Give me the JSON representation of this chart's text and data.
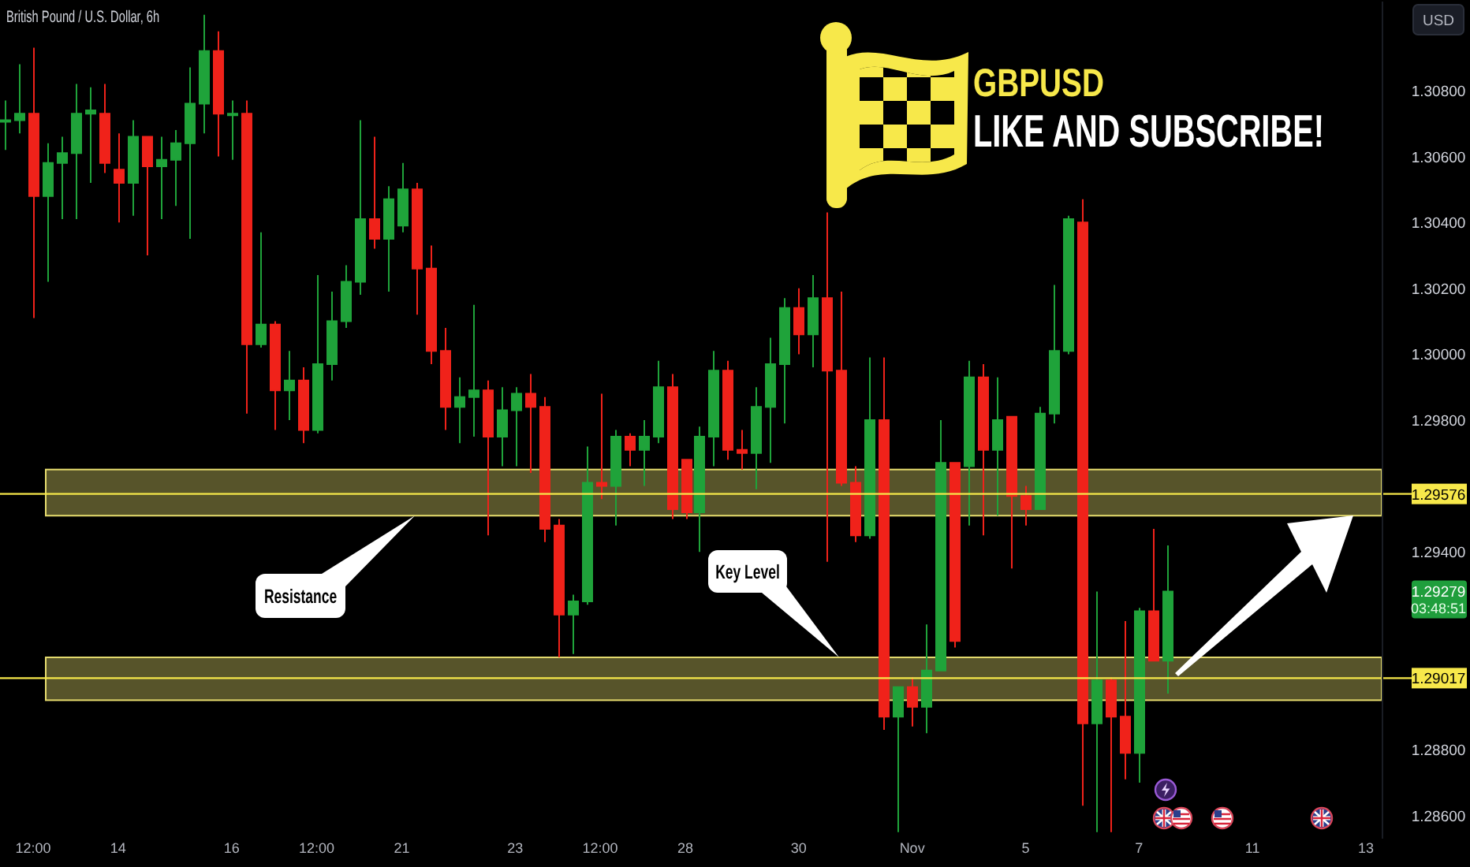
{
  "chart_data": {
    "type": "candlestick",
    "title": "British Pound / U.S. Dollar, 6h",
    "subtitle": "GBPUSD",
    "ylabel": "USD",
    "categories": [
      null,
      null,
      "12:00",
      null,
      null,
      null,
      null,
      null,
      "14",
      null,
      null,
      null,
      null,
      null,
      null,
      null,
      "16",
      null,
      null,
      null,
      null,
      null,
      "12:00",
      null,
      null,
      null,
      null,
      null,
      "21",
      null,
      null,
      null,
      null,
      null,
      null,
      null,
      "23",
      null,
      null,
      null,
      null,
      null,
      "12:00",
      null,
      null,
      null,
      null,
      null,
      "28",
      null,
      null,
      null,
      null,
      null,
      null,
      null,
      "30",
      null,
      null,
      null,
      null,
      null,
      null,
      null,
      "Nov",
      null,
      null,
      null,
      null,
      null,
      null,
      null,
      "5",
      null,
      null,
      null,
      null,
      null,
      null,
      null,
      "7",
      null,
      null,
      null,
      null,
      null,
      null,
      null,
      "11",
      null,
      null,
      null,
      null,
      null,
      null,
      null,
      "13"
    ],
    "ohlc": [
      [
        1.3071,
        1.3077,
        1.3062,
        1.3071
      ],
      [
        1.3071,
        1.3088,
        1.3067,
        1.3073
      ],
      [
        1.3073,
        1.3093,
        1.3011,
        1.3048
      ],
      [
        1.3048,
        1.3064,
        1.3022,
        1.3058
      ],
      [
        1.3058,
        1.3066,
        1.3041,
        1.3061
      ],
      [
        1.3061,
        1.3082,
        1.3041,
        1.3073
      ],
      [
        1.3073,
        1.3081,
        1.3052,
        1.3074
      ],
      [
        1.3073,
        1.3082,
        1.3055,
        1.3058
      ],
      [
        1.3056,
        1.3067,
        1.304,
        1.3052
      ],
      [
        1.3052,
        1.3071,
        1.3042,
        1.3066
      ],
      [
        1.3066,
        1.3066,
        1.303,
        1.3057
      ],
      [
        1.3057,
        1.3066,
        1.3041,
        1.3059
      ],
      [
        1.3059,
        1.3068,
        1.3045,
        1.3064
      ],
      [
        1.3064,
        1.3087,
        1.3035,
        1.3076
      ],
      [
        1.3076,
        1.3103,
        1.3067,
        1.3092
      ],
      [
        1.3092,
        1.3098,
        1.306,
        1.3073
      ],
      [
        1.3073,
        1.3077,
        1.3059,
        1.3073
      ],
      [
        1.3073,
        1.3077,
        1.2982,
        1.3003
      ],
      [
        1.3003,
        1.3037,
        1.3002,
        1.3009
      ],
      [
        1.3009,
        1.301,
        1.2977,
        1.2989
      ],
      [
        1.2989,
        1.3001,
        1.298,
        1.2992
      ],
      [
        1.2992,
        1.2996,
        1.2973,
        1.2977
      ],
      [
        1.2977,
        1.3024,
        1.2976,
        1.2997
      ],
      [
        1.2997,
        1.3019,
        1.2992,
        1.301
      ],
      [
        1.301,
        1.3027,
        1.3008,
        1.3022
      ],
      [
        1.3022,
        1.3071,
        1.3018,
        1.3041
      ],
      [
        1.3041,
        1.3066,
        1.3032,
        1.3035
      ],
      [
        1.3035,
        1.3051,
        1.3019,
        1.3047
      ],
      [
        1.3039,
        1.3058,
        1.3037,
        1.305
      ],
      [
        1.305,
        1.3052,
        1.3012,
        1.3026
      ],
      [
        1.3026,
        1.3033,
        1.2997,
        1.3001
      ],
      [
        1.3001,
        1.3008,
        1.2977,
        1.2984
      ],
      [
        1.2984,
        1.2993,
        1.2973,
        1.2987
      ],
      [
        1.2987,
        1.3015,
        1.2975,
        1.2989
      ],
      [
        1.2989,
        1.2992,
        1.2945,
        1.2975
      ],
      [
        1.2975,
        1.299,
        1.2966,
        1.2983
      ],
      [
        1.2983,
        1.299,
        1.2966,
        1.2988
      ],
      [
        1.2988,
        1.2994,
        1.2964,
        1.2984
      ],
      [
        1.2984,
        1.2987,
        1.2943,
        1.2947
      ],
      [
        1.2948,
        1.295,
        1.2908,
        1.2921
      ],
      [
        1.2921,
        1.2927,
        1.2909,
        1.2925
      ],
      [
        1.2925,
        1.2972,
        1.2924,
        1.2961
      ],
      [
        1.2961,
        1.2988,
        1.2956,
        1.296
      ],
      [
        1.296,
        1.2977,
        1.2948,
        1.2975
      ],
      [
        1.2975,
        1.2976,
        1.2966,
        1.2971
      ],
      [
        1.2971,
        1.298,
        1.296,
        1.2975
      ],
      [
        1.2975,
        1.2998,
        1.2973,
        1.299
      ],
      [
        1.299,
        1.2994,
        1.295,
        1.2953
      ],
      [
        1.2968,
        1.2968,
        1.295,
        1.2952
      ],
      [
        1.2952,
        1.2978,
        1.294,
        1.2975
      ],
      [
        1.2975,
        1.3001,
        1.2966,
        1.2995
      ],
      [
        1.2995,
        1.2998,
        1.2968,
        1.2971
      ],
      [
        1.2971,
        1.2977,
        1.2965,
        1.297
      ],
      [
        1.297,
        1.299,
        1.2959,
        1.2984
      ],
      [
        1.2984,
        1.3005,
        1.2967,
        1.2997
      ],
      [
        1.2997,
        1.3017,
        1.2979,
        1.3014
      ],
      [
        1.3014,
        1.302,
        1.3,
        1.3006
      ],
      [
        1.3006,
        1.3024,
        1.2996,
        1.3017
      ],
      [
        1.3017,
        1.3043,
        1.2937,
        1.2995
      ],
      [
        1.2995,
        1.3019,
        1.296,
        1.2961
      ],
      [
        1.2961,
        1.2966,
        1.2943,
        1.2945
      ],
      [
        1.2945,
        1.2999,
        1.2944,
        1.298
      ],
      [
        1.298,
        1.2999,
        1.2886,
        1.289
      ],
      [
        1.289,
        1.2899,
        1.2855,
        1.2899
      ],
      [
        1.2899,
        1.2902,
        1.2887,
        1.2893
      ],
      [
        1.2893,
        1.2918,
        1.2885,
        1.2904
      ],
      [
        1.2904,
        1.298,
        1.2904,
        1.2967
      ],
      [
        1.2967,
        1.2967,
        1.2911,
        1.2913
      ],
      [
        1.2966,
        1.2998,
        1.2948,
        1.2993
      ],
      [
        1.2993,
        1.2997,
        1.2945,
        1.2971
      ],
      [
        1.2971,
        1.2993,
        1.2951,
        1.298
      ],
      [
        1.2981,
        1.2981,
        1.2935,
        1.2957
      ],
      [
        1.2957,
        1.296,
        1.2948,
        1.2953
      ],
      [
        1.2953,
        1.2984,
        1.2953,
        1.2982
      ],
      [
        1.2982,
        1.3021,
        1.2979,
        1.3001
      ],
      [
        1.3001,
        1.3042,
        1.3,
        1.3041
      ],
      [
        1.304,
        1.3047,
        1.2863,
        1.2888
      ],
      [
        1.2888,
        1.2928,
        1.2855,
        1.2901
      ],
      [
        1.2901,
        1.2902,
        1.2855,
        1.289
      ],
      [
        1.289,
        1.2919,
        1.2871,
        1.2879
      ],
      [
        1.2879,
        1.2923,
        1.287,
        1.2922
      ],
      [
        1.2922,
        1.2947,
        1.2907,
        1.2907
      ],
      [
        1.2907,
        1.2942,
        1.2897,
        1.2928
      ],
      null,
      null,
      null,
      null,
      null,
      null,
      null,
      null,
      null,
      null,
      null,
      null,
      null,
      null
    ],
    "ylim": [
      1.2853,
      1.3107
    ],
    "yticks": [
      {
        "value": 1.286,
        "label": "1.28600"
      },
      {
        "value": 1.288,
        "label": "1.28800"
      },
      {
        "value": 1.294,
        "label": "1.29400"
      },
      {
        "value": 1.298,
        "label": "1.29800"
      },
      {
        "value": 1.3,
        "label": "1.30000"
      },
      {
        "value": 1.302,
        "label": "1.30200"
      },
      {
        "value": 1.304,
        "label": "1.30400"
      },
      {
        "value": 1.306,
        "label": "1.30600"
      },
      {
        "value": 1.308,
        "label": "1.30800"
      }
    ],
    "bands": [
      {
        "axis": "y",
        "from": 1.2951,
        "to": 1.2965,
        "color": "#e6dc6e"
      },
      {
        "axis": "y",
        "from": 1.2895,
        "to": 1.2908,
        "color": "#e6dc6e"
      }
    ],
    "ref_lines": [
      {
        "axis": "y",
        "value": 1.29576,
        "label": "1.29576",
        "color": "#f7e84a"
      },
      {
        "axis": "y",
        "value": 1.29017,
        "label": "1.29017",
        "color": "#f7e84a"
      }
    ],
    "annotations": [
      "LIKE AND SUBSCRIBE!",
      "Resistance",
      "Key Level",
      "1.29279",
      "03:48:51"
    ]
  }
}
